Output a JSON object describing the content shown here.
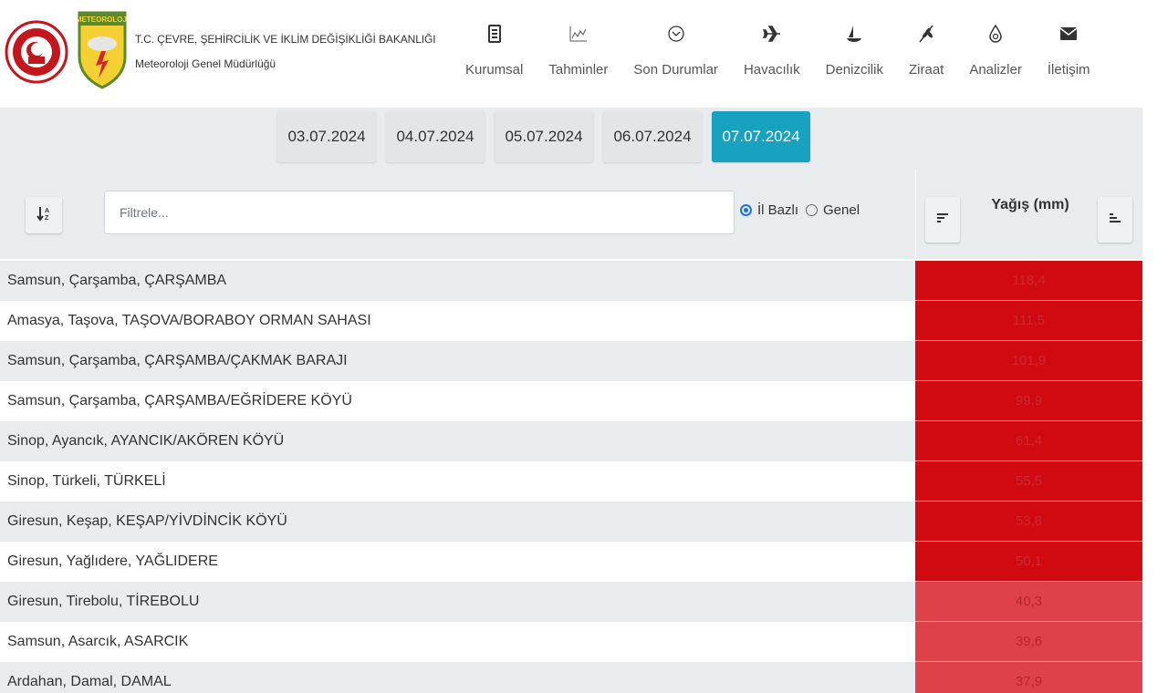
{
  "header": {
    "ministry": "T.C. ÇEVRE, ŞEHİRCİLİK VE İKLİM DEĞİŞİKLİĞİ BAKANLIĞI",
    "department": "Meteoroloji Genel Müdürlüğü",
    "logo_text": "METEOROLOJİ"
  },
  "nav": [
    {
      "label": "Kurumsal",
      "icon": "document-icon"
    },
    {
      "label": "Tahminler",
      "icon": "chart-icon"
    },
    {
      "label": "Son Durumlar",
      "icon": "chevron-circle-icon"
    },
    {
      "label": "Havacılık",
      "icon": "airplane-icon"
    },
    {
      "label": "Denizcilik",
      "icon": "boat-icon"
    },
    {
      "label": "Ziraat",
      "icon": "wheat-icon"
    },
    {
      "label": "Analizler",
      "icon": "drop-icon"
    },
    {
      "label": "İletişim",
      "icon": "envelope-icon"
    }
  ],
  "dates": {
    "tabs": [
      "03.07.2024",
      "04.07.2024",
      "05.07.2024",
      "06.07.2024",
      "07.07.2024"
    ],
    "active": "07.07.2024"
  },
  "filter": {
    "placeholder": "Filtrele...",
    "value": "",
    "radio_province": "İl Bazlı",
    "radio_general": "Genel",
    "selected": "İl Bazlı"
  },
  "column": {
    "title": "Yağış (mm)"
  },
  "colors": {
    "active_tab": "#17a2bf",
    "high": "#d10a12",
    "medium": "#de4148"
  },
  "rows": [
    {
      "name": "Samsun, Çarşamba, ÇARŞAMBA",
      "value": "118,4",
      "level": "dark"
    },
    {
      "name": "Amasya, Taşova, TAŞOVA/BORABOY ORMAN SAHASI",
      "value": "111,5",
      "level": "dark"
    },
    {
      "name": "Samsun, Çarşamba, ÇARŞAMBA/ÇAKMAK BARAJI",
      "value": "101,9",
      "level": "dark"
    },
    {
      "name": "Samsun, Çarşamba, ÇARŞAMBA/EĞRİDERE KÖYÜ",
      "value": "99,9",
      "level": "dark"
    },
    {
      "name": "Sinop, Ayancık, AYANCIK/AKÖREN KÖYÜ",
      "value": "61,4",
      "level": "dark"
    },
    {
      "name": "Sinop, Türkeli, TÜRKELİ",
      "value": "55,5",
      "level": "dark"
    },
    {
      "name": "Giresun, Keşap, KEŞAP/YİVDİNCİK KÖYÜ",
      "value": "53,8",
      "level": "dark"
    },
    {
      "name": "Giresun, Yağlıdere, YAĞLIDERE",
      "value": "50,1",
      "level": "dark"
    },
    {
      "name": "Giresun, Tirebolu, TİREBOLU",
      "value": "40,3",
      "level": "mid"
    },
    {
      "name": "Samsun, Asarcık, ASARCIK",
      "value": "39,6",
      "level": "mid"
    },
    {
      "name": "Ardahan, Damal, DAMAL",
      "value": "37,9",
      "level": "mid"
    }
  ]
}
